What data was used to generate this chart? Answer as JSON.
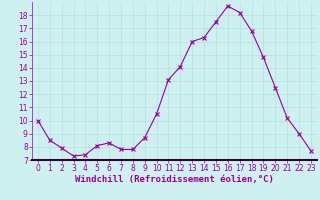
{
  "x": [
    0,
    1,
    2,
    3,
    4,
    5,
    6,
    7,
    8,
    9,
    10,
    11,
    12,
    13,
    14,
    15,
    16,
    17,
    18,
    19,
    20,
    21,
    22,
    23
  ],
  "y": [
    10.0,
    8.5,
    7.9,
    7.3,
    7.4,
    8.1,
    8.3,
    7.8,
    7.8,
    8.7,
    10.5,
    13.1,
    14.1,
    16.0,
    16.3,
    17.5,
    18.7,
    18.2,
    16.8,
    14.8,
    12.5,
    10.2,
    9.0,
    7.7
  ],
  "line_color": "#990099",
  "marker": "x",
  "marker_size": 2.5,
  "bg_color": "#cff0f0",
  "grid_color": "#aadddd",
  "border_color": "#330033",
  "xlabel": "Windchill (Refroidissement éolien,°C)",
  "xlabel_color": "#990099",
  "ylim": [
    7,
    19
  ],
  "yticks": [
    7,
    8,
    9,
    10,
    11,
    12,
    13,
    14,
    15,
    16,
    17,
    18
  ],
  "xticks": [
    0,
    1,
    2,
    3,
    4,
    5,
    6,
    7,
    8,
    9,
    10,
    11,
    12,
    13,
    14,
    15,
    16,
    17,
    18,
    19,
    20,
    21,
    22,
    23
  ],
  "tick_color": "#990099",
  "tick_fontsize": 5.5,
  "xlabel_fontsize": 6.5,
  "ylabel_fontsize": 5.5
}
